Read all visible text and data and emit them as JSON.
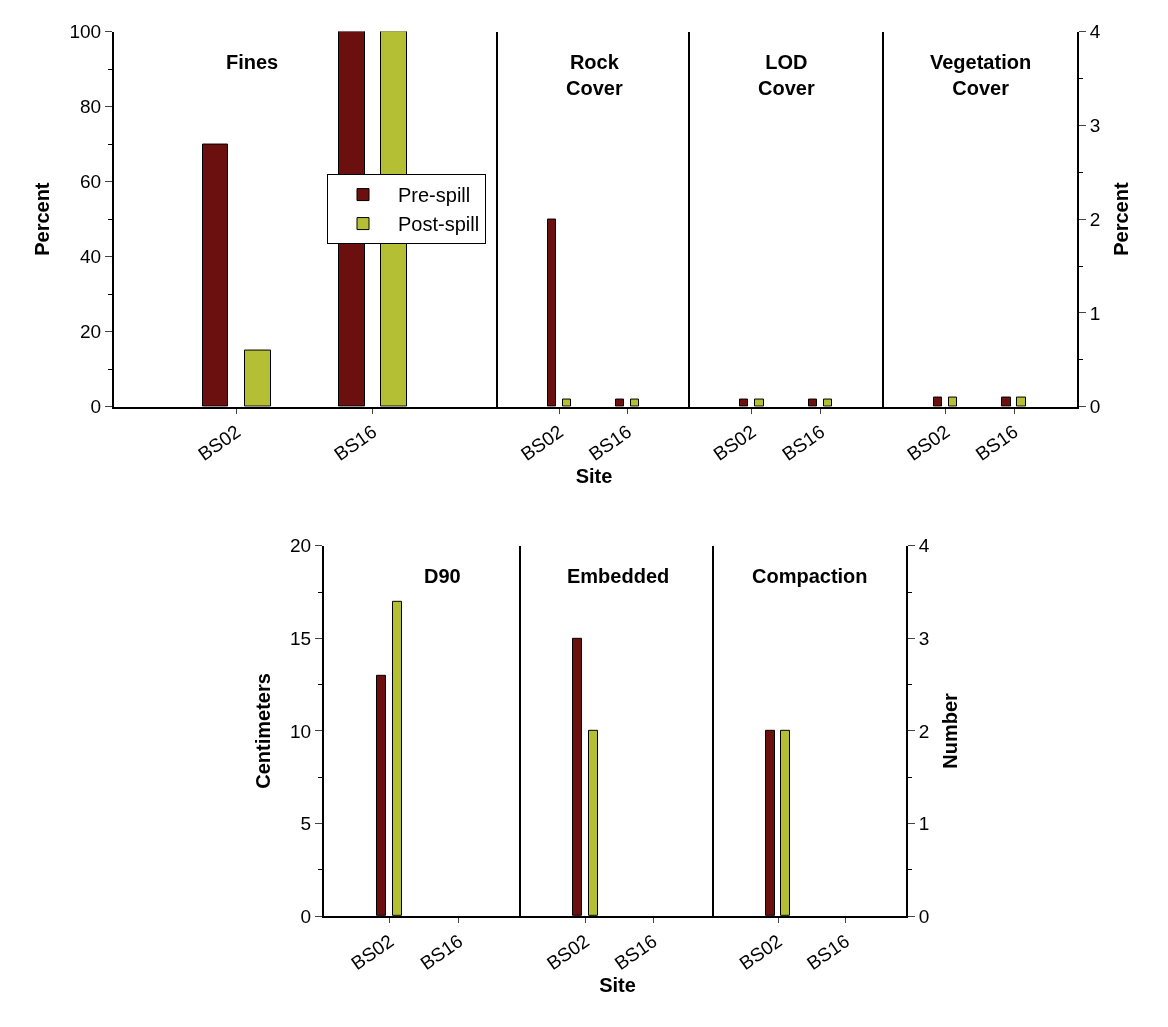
{
  "chart_data": [
    {
      "type": "bar",
      "title": "Fines",
      "ylabel": "Percent",
      "categories": [
        "BS02",
        "BS16"
      ],
      "ylim": [
        0,
        100
      ],
      "yticks": [
        0,
        20,
        40,
        60,
        80,
        100
      ],
      "legend": "right",
      "series": [
        {
          "name": "Pre-spill",
          "color": "#6b0f0f",
          "values": [
            70,
            100
          ]
        },
        {
          "name": "Post-spill",
          "color": "#b5bf34",
          "values": [
            15,
            100
          ]
        }
      ]
    },
    {
      "type": "bar",
      "title": "Rock Cover",
      "xlabel": "Site",
      "categories": [
        "BS02",
        "BS16"
      ],
      "ylim": [
        0,
        4
      ],
      "tick_labels": "x",
      "series": [
        {
          "color": "#6b0f0f",
          "values": [
            2.0,
            0.08
          ]
        },
        {
          "color": "#b5bf34",
          "values": [
            0.08,
            0.08
          ]
        }
      ]
    },
    {
      "type": "bar",
      "title": "LOD Cover",
      "categories": [
        "BS02",
        "BS16"
      ],
      "ylim": [
        0,
        4
      ],
      "tick_labels": "x",
      "series": [
        {
          "color": "#6b0f0f",
          "values": [
            0.08,
            0.08
          ]
        },
        {
          "color": "#b5bf34",
          "values": [
            0.08,
            0.08
          ]
        }
      ]
    },
    {
      "type": "bar",
      "title": "Vegetation Cover",
      "ylabel": "Percent",
      "categories": [
        "BS02",
        "BS16"
      ],
      "ylim": [
        0,
        4
      ],
      "yticks": [
        0,
        1,
        2,
        3,
        4
      ],
      "series": [
        {
          "color": "#6b0f0f",
          "values": [
            0.1,
            0.1
          ]
        },
        {
          "color": "#b5bf34",
          "values": [
            0.1,
            0.1
          ]
        }
      ]
    },
    {
      "type": "bar",
      "title": "D90",
      "ylabel": "Centimeters",
      "categories": [
        "BS02",
        "BS16"
      ],
      "ylim": [
        0,
        20
      ],
      "yticks": [
        0,
        5,
        10,
        15,
        20
      ],
      "series": [
        {
          "color": "#6b0f0f",
          "values": [
            13,
            null
          ]
        },
        {
          "color": "#b5bf34",
          "values": [
            17,
            null
          ]
        }
      ]
    },
    {
      "type": "bar",
      "title": "Embedded",
      "xlabel": "Site",
      "categories": [
        "BS02",
        "BS16"
      ],
      "ylim": [
        0,
        4
      ],
      "tick_labels": "x",
      "series": [
        {
          "color": "#6b0f0f",
          "values": [
            3,
            null
          ]
        },
        {
          "color": "#b5bf34",
          "values": [
            2,
            null
          ]
        }
      ]
    },
    {
      "type": "bar",
      "title": "Compaction",
      "ylabel": "Number",
      "categories": [
        "BS02",
        "BS16"
      ],
      "ylim": [
        0,
        4
      ],
      "yticks": [
        0,
        1,
        2,
        3,
        4
      ],
      "series": [
        {
          "color": "#6b0f0f",
          "values": [
            2,
            null
          ]
        },
        {
          "color": "#b5bf34",
          "values": [
            2,
            null
          ]
        }
      ]
    }
  ]
}
